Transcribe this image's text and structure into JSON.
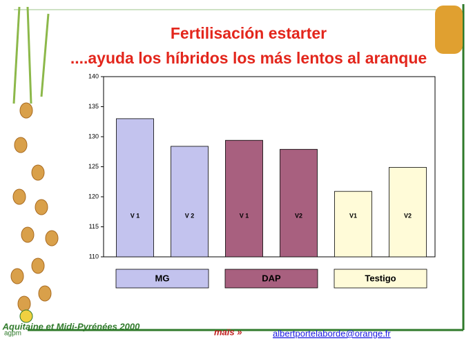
{
  "chart_data": {
    "type": "bar",
    "title": "Fertilisación estarter",
    "subtitle": "....ayuda los híbridos los más lentos al aranque",
    "categories": [
      "V 1",
      "V 2",
      "V 1",
      "V2",
      "V1",
      "V2"
    ],
    "series": [
      {
        "name": "MG",
        "color": "#c3c3ee",
        "values": [
          133,
          128.4,
          null,
          null,
          null,
          null
        ]
      },
      {
        "name": "DAP",
        "color": "#a8607f",
        "values": [
          null,
          null,
          129.4,
          127.9,
          null,
          null
        ]
      },
      {
        "name": "Testigo",
        "color": "#fffbd8",
        "values": [
          null,
          null,
          null,
          null,
          120.9,
          124.9
        ]
      }
    ],
    "ylim": [
      110,
      140
    ],
    "yticks": [
      110,
      115,
      120,
      125,
      130,
      135,
      140
    ]
  },
  "footer": {
    "region": "Aquitaine et Midi-Pyrénées 2000",
    "logo": "agpm",
    "brand": "maïs »",
    "email": "albertportelaborde@orange.fr"
  }
}
